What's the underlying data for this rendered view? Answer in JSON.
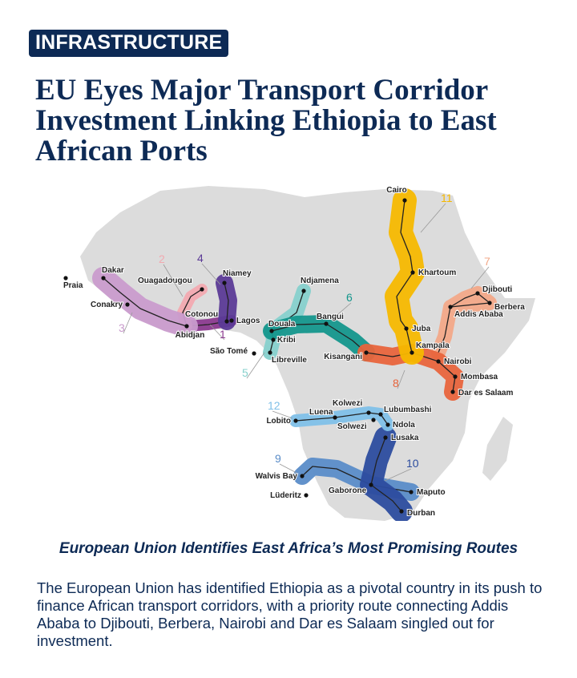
{
  "badge": "INFRASTRUCTURE",
  "headline": "EU Eyes Major Transport Corridor Investment Linking Ethiopia to East African Ports",
  "map": {
    "land_color": "#dcdcdc",
    "cities": [
      "Cairo",
      "Khartoum",
      "Juba",
      "Kampala",
      "Nairobi",
      "Mombasa",
      "Dar es Salaam",
      "Djibouti",
      "Berbera",
      "Addis Ababa",
      "Kisangani",
      "Bangui",
      "Ndjamena",
      "Douala",
      "Kribi",
      "Libreville",
      "São Tomé",
      "Lagos",
      "Cotonou",
      "Niamey",
      "Ouagadougou",
      "Abidjan",
      "Conakry",
      "Dakar",
      "Praia",
      "Lobito",
      "Luena",
      "Kolwezi",
      "Lubumbashi",
      "Ndola",
      "Solwezi",
      "Lusaka",
      "Walvis Bay",
      "Lüderitz",
      "Gaborone",
      "Maputo",
      "Durban"
    ],
    "corridors": [
      {
        "number": "1",
        "color": "#8b3a8f"
      },
      {
        "number": "2",
        "color": "#f2a9b0"
      },
      {
        "number": "3",
        "color": "#c99bcc"
      },
      {
        "number": "4",
        "color": "#5b3a96"
      },
      {
        "number": "5",
        "color": "#86d0cc"
      },
      {
        "number": "6",
        "color": "#14968c"
      },
      {
        "number": "7",
        "color": "#f2a888"
      },
      {
        "number": "8",
        "color": "#e8643c"
      },
      {
        "number": "9",
        "color": "#5a8cc8"
      },
      {
        "number": "10",
        "color": "#2c4c9e"
      },
      {
        "number": "11",
        "color": "#f5b800"
      },
      {
        "number": "12",
        "color": "#80c0e8"
      }
    ]
  },
  "subtitle": "European Union Identifies East Africa’s Most Promising Routes",
  "body": "The European Union has identified Ethiopia as a pivotal country in its push to finance African transport corridors, with a priority route connecting Addis Ababa to Djibouti, Berbera, Nairobi and Dar es Salaam singled out for investment."
}
